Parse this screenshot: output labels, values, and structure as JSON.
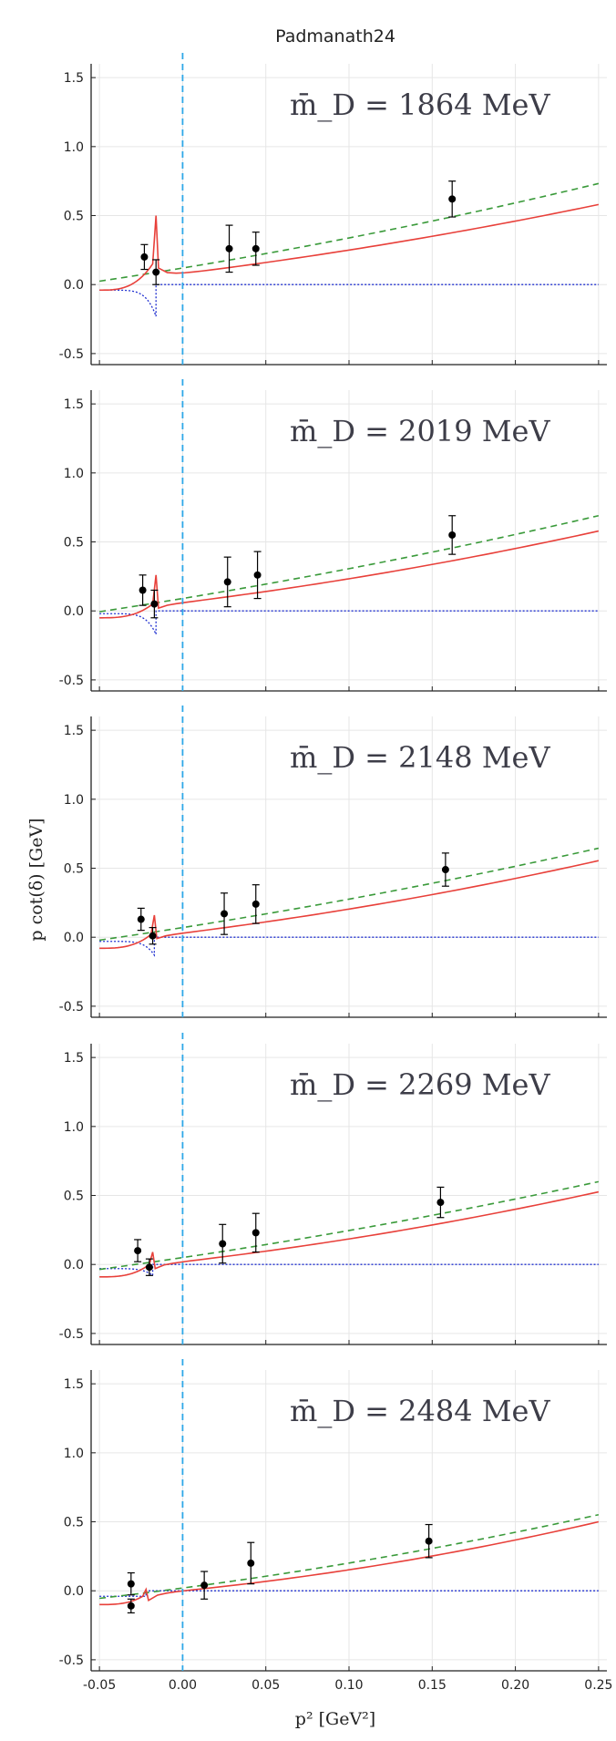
{
  "title": "Padmanath24",
  "colors": {
    "fit_solid": "#e8403a",
    "fit_dashed": "#3a9a3a",
    "fit_dotted": "#2030d0",
    "threshold": "#2ea8e8",
    "points": "#000000"
  },
  "chart_data": [
    {
      "type": "scatter",
      "annotation": "m̄_D = 1864 MeV",
      "xlim": [
        -0.055,
        0.255
      ],
      "ylim": [
        -0.58,
        1.6
      ],
      "xticks": [
        -0.05,
        0.0,
        0.05,
        0.1,
        0.15,
        0.2,
        0.25
      ],
      "yticks": [
        -0.5,
        0.0,
        0.5,
        1.0,
        1.5
      ],
      "threshold_x": 0.0,
      "points": [
        {
          "x": -0.023,
          "y": 0.2,
          "err": 0.09
        },
        {
          "x": -0.016,
          "y": 0.09,
          "err": 0.09
        },
        {
          "x": 0.028,
          "y": 0.26,
          "err": 0.17
        },
        {
          "x": 0.044,
          "y": 0.26,
          "err": 0.12
        },
        {
          "x": 0.162,
          "y": 0.62,
          "err": 0.13
        }
      ],
      "curves": {
        "dashed": {
          "a": 0.12,
          "b": 2.0,
          "c": 1.8
        },
        "solid": {
          "a": 0.08,
          "b": 1.5,
          "c": 2.0,
          "spike_x": -0.016,
          "spike_top": 0.5,
          "spike_bottom": 0.15,
          "left_y": -0.04
        },
        "dotted": {
          "dip_x": -0.016,
          "dip_y": -0.23,
          "left_y": -0.04
        }
      }
    },
    {
      "type": "scatter",
      "annotation": "m̄_D = 2019 MeV",
      "xlim": [
        -0.055,
        0.255
      ],
      "ylim": [
        -0.58,
        1.6
      ],
      "xticks": [
        -0.05,
        0.0,
        0.05,
        0.1,
        0.15,
        0.2,
        0.25
      ],
      "yticks": [
        -0.5,
        0.0,
        0.5,
        1.0,
        1.5
      ],
      "threshold_x": 0.0,
      "points": [
        {
          "x": -0.024,
          "y": 0.15,
          "err": 0.11
        },
        {
          "x": -0.017,
          "y": 0.05,
          "err": 0.1
        },
        {
          "x": 0.027,
          "y": 0.21,
          "err": 0.18
        },
        {
          "x": 0.045,
          "y": 0.26,
          "err": 0.17
        },
        {
          "x": 0.162,
          "y": 0.55,
          "err": 0.14
        }
      ],
      "curves": {
        "dashed": {
          "a": 0.09,
          "b": 2.0,
          "c": 1.6
        },
        "solid": {
          "a": 0.06,
          "b": 1.5,
          "c": 2.3,
          "spike_x": -0.016,
          "spike_top": 0.26,
          "spike_bottom": 0.05,
          "left_y": -0.05
        },
        "dotted": {
          "dip_x": -0.016,
          "dip_y": -0.17,
          "left_y": -0.02
        }
      }
    },
    {
      "type": "scatter",
      "annotation": "m̄_D = 2148 MeV",
      "xlim": [
        -0.055,
        0.255
      ],
      "ylim": [
        -0.58,
        1.6
      ],
      "xticks": [
        -0.05,
        0.0,
        0.05,
        0.1,
        0.15,
        0.2,
        0.25
      ],
      "yticks": [
        -0.5,
        0.0,
        0.5,
        1.0,
        1.5
      ],
      "threshold_x": 0.0,
      "points": [
        {
          "x": -0.025,
          "y": 0.13,
          "err": 0.08
        },
        {
          "x": -0.018,
          "y": 0.01,
          "err": 0.06
        },
        {
          "x": 0.025,
          "y": 0.17,
          "err": 0.15
        },
        {
          "x": 0.044,
          "y": 0.24,
          "err": 0.14
        },
        {
          "x": 0.158,
          "y": 0.49,
          "err": 0.12
        }
      ],
      "curves": {
        "dashed": {
          "a": 0.07,
          "b": 1.9,
          "c": 1.6
        },
        "solid": {
          "a": 0.03,
          "b": 1.5,
          "c": 2.4,
          "spike_x": -0.017,
          "spike_top": 0.16,
          "spike_bottom": 0.02,
          "left_y": -0.08
        },
        "dotted": {
          "dip_x": -0.017,
          "dip_y": -0.13,
          "left_y": -0.03
        }
      }
    },
    {
      "type": "scatter",
      "annotation": "m̄_D = 2269 MeV",
      "xlim": [
        -0.055,
        0.255
      ],
      "ylim": [
        -0.58,
        1.6
      ],
      "xticks": [
        -0.05,
        0.0,
        0.05,
        0.1,
        0.15,
        0.2,
        0.25
      ],
      "yticks": [
        -0.5,
        0.0,
        0.5,
        1.0,
        1.5
      ],
      "threshold_x": 0.0,
      "points": [
        {
          "x": -0.027,
          "y": 0.1,
          "err": 0.08
        },
        {
          "x": -0.02,
          "y": -0.02,
          "err": 0.06
        },
        {
          "x": 0.024,
          "y": 0.15,
          "err": 0.14
        },
        {
          "x": 0.044,
          "y": 0.23,
          "err": 0.14
        },
        {
          "x": 0.155,
          "y": 0.45,
          "err": 0.11
        }
      ],
      "curves": {
        "dashed": {
          "a": 0.05,
          "b": 1.8,
          "c": 1.6
        },
        "solid": {
          "a": 0.02,
          "b": 1.4,
          "c": 2.5,
          "spike_x": -0.018,
          "spike_top": 0.09,
          "spike_bottom": 0.0,
          "left_y": -0.09
        },
        "dotted": {
          "dip_x": -0.018,
          "dip_y": -0.08,
          "left_y": -0.03
        }
      }
    },
    {
      "type": "scatter",
      "annotation": "m̄_D = 2484 MeV",
      "xlim": [
        -0.055,
        0.255
      ],
      "ylim": [
        -0.58,
        1.6
      ],
      "xticks": [
        -0.05,
        0.0,
        0.05,
        0.1,
        0.15,
        0.2,
        0.25
      ],
      "yticks": [
        -0.5,
        0.0,
        0.5,
        1.0,
        1.5
      ],
      "threshold_x": 0.0,
      "points": [
        {
          "x": -0.031,
          "y": 0.05,
          "err": 0.08
        },
        {
          "x": -0.031,
          "y": -0.11,
          "err": 0.05
        },
        {
          "x": 0.013,
          "y": 0.04,
          "err": 0.1
        },
        {
          "x": 0.041,
          "y": 0.2,
          "err": 0.15
        },
        {
          "x": 0.148,
          "y": 0.36,
          "err": 0.12
        }
      ],
      "curves": {
        "dashed": {
          "a": 0.02,
          "b": 1.6,
          "c": 2.1
        },
        "solid": {
          "a": 0.0,
          "b": 1.2,
          "c": 3.2,
          "spike_x": -0.022,
          "spike_top": 0.01,
          "spike_bottom": -0.04,
          "left_y": -0.1
        },
        "dotted": {
          "dip_x": -0.022,
          "dip_y": -0.04,
          "left_y": -0.04
        }
      }
    }
  ],
  "ylabel": "p cot(δ) [GeV]",
  "xlabel": "p² [GeV²]"
}
